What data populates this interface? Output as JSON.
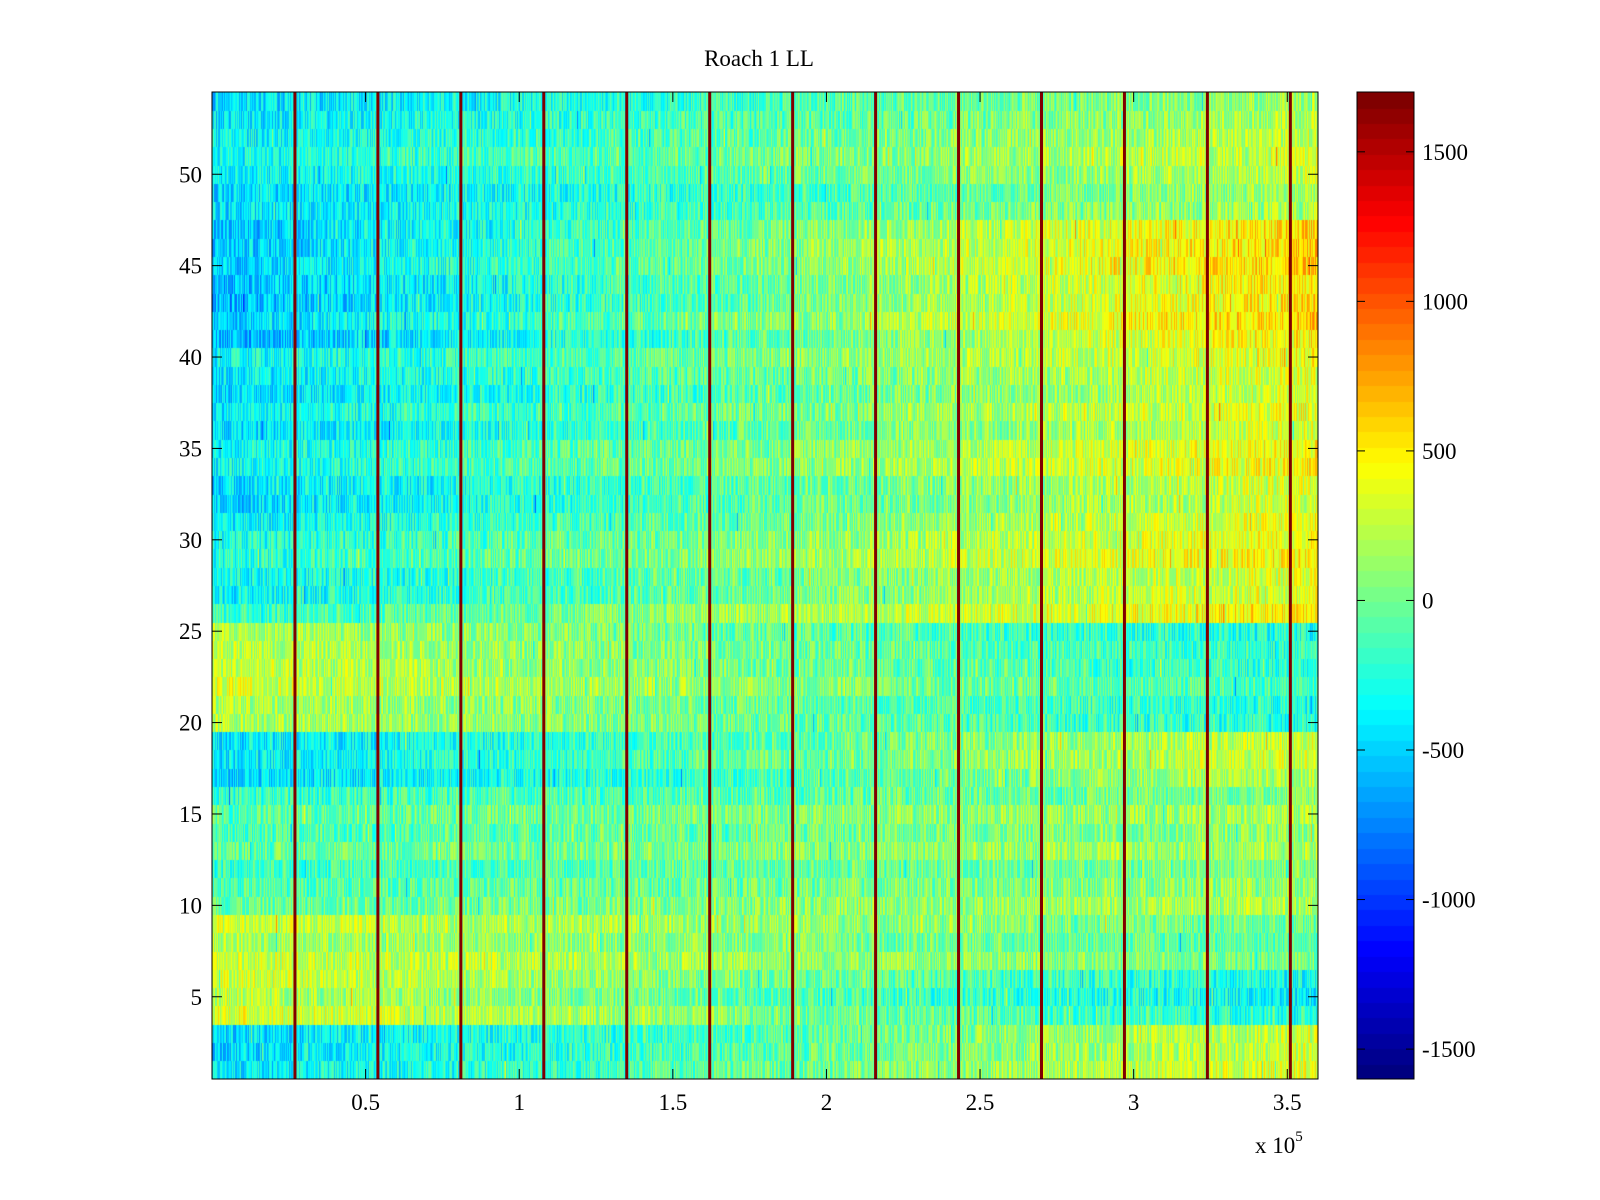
{
  "chart_data": {
    "type": "heatmap",
    "title": "Roach 1 LL",
    "xlabel": "",
    "ylabel": "",
    "x_multiplier_label": {
      "base": "x 10",
      "exponent": "5"
    },
    "xlim": [
      0,
      3.6
    ],
    "x_scale": 100000,
    "ylim": [
      0.5,
      54.5
    ],
    "rows": 54,
    "x_ticks": [
      {
        "value": 0.5,
        "label": "0.5"
      },
      {
        "value": 1,
        "label": "1"
      },
      {
        "value": 1.5,
        "label": "1.5"
      },
      {
        "value": 2,
        "label": "2"
      },
      {
        "value": 2.5,
        "label": "2.5"
      },
      {
        "value": 3,
        "label": "3"
      },
      {
        "value": 3.5,
        "label": "3.5"
      }
    ],
    "y_ticks": [
      {
        "value": 5,
        "label": "5"
      },
      {
        "value": 10,
        "label": "10"
      },
      {
        "value": 15,
        "label": "15"
      },
      {
        "value": 20,
        "label": "20"
      },
      {
        "value": 25,
        "label": "25"
      },
      {
        "value": 30,
        "label": "30"
      },
      {
        "value": 35,
        "label": "35"
      },
      {
        "value": 40,
        "label": "40"
      },
      {
        "value": 45,
        "label": "45"
      },
      {
        "value": 50,
        "label": "50"
      }
    ],
    "colorbar": {
      "colormap": "jet",
      "clim": [
        -1600,
        1700
      ],
      "ticks": [
        {
          "value": -1500,
          "label": "-1500"
        },
        {
          "value": -1000,
          "label": "-1000"
        },
        {
          "value": -500,
          "label": "-500"
        },
        {
          "value": 0,
          "label": "0"
        },
        {
          "value": 500,
          "label": "500"
        },
        {
          "value": 1000,
          "label": "1000"
        },
        {
          "value": 1500,
          "label": "1500"
        }
      ]
    },
    "segment_boundaries_x": [
      0.27,
      0.54,
      0.81,
      1.08,
      1.35,
      1.62,
      1.89,
      2.16,
      2.43,
      2.7,
      2.97,
      3.24,
      3.51
    ],
    "segment_boundary_value": 1700,
    "row_base_trend": [
      {
        "rows": [
          1,
          3
        ],
        "start": -450,
        "end": 350
      },
      {
        "rows": [
          4,
          6
        ],
        "start": 350,
        "end": -300
      },
      {
        "rows": [
          7,
          9
        ],
        "start": 300,
        "end": 0
      },
      {
        "rows": [
          10,
          16
        ],
        "start": -100,
        "end": 150
      },
      {
        "rows": [
          17,
          19
        ],
        "start": -450,
        "end": 300
      },
      {
        "rows": [
          20,
          25
        ],
        "start": 300,
        "end": -200
      },
      {
        "rows": [
          26,
          30
        ],
        "start": -300,
        "end": 450
      },
      {
        "rows": [
          31,
          40
        ],
        "start": -400,
        "end": 400
      },
      {
        "rows": [
          41,
          47
        ],
        "start": -600,
        "end": 550
      },
      {
        "rows": [
          48,
          54
        ],
        "start": -400,
        "end": 250
      }
    ],
    "noise_amplitude": 280,
    "grid": false,
    "colors": {
      "axis": "#000000",
      "background": "#ffffff"
    }
  }
}
